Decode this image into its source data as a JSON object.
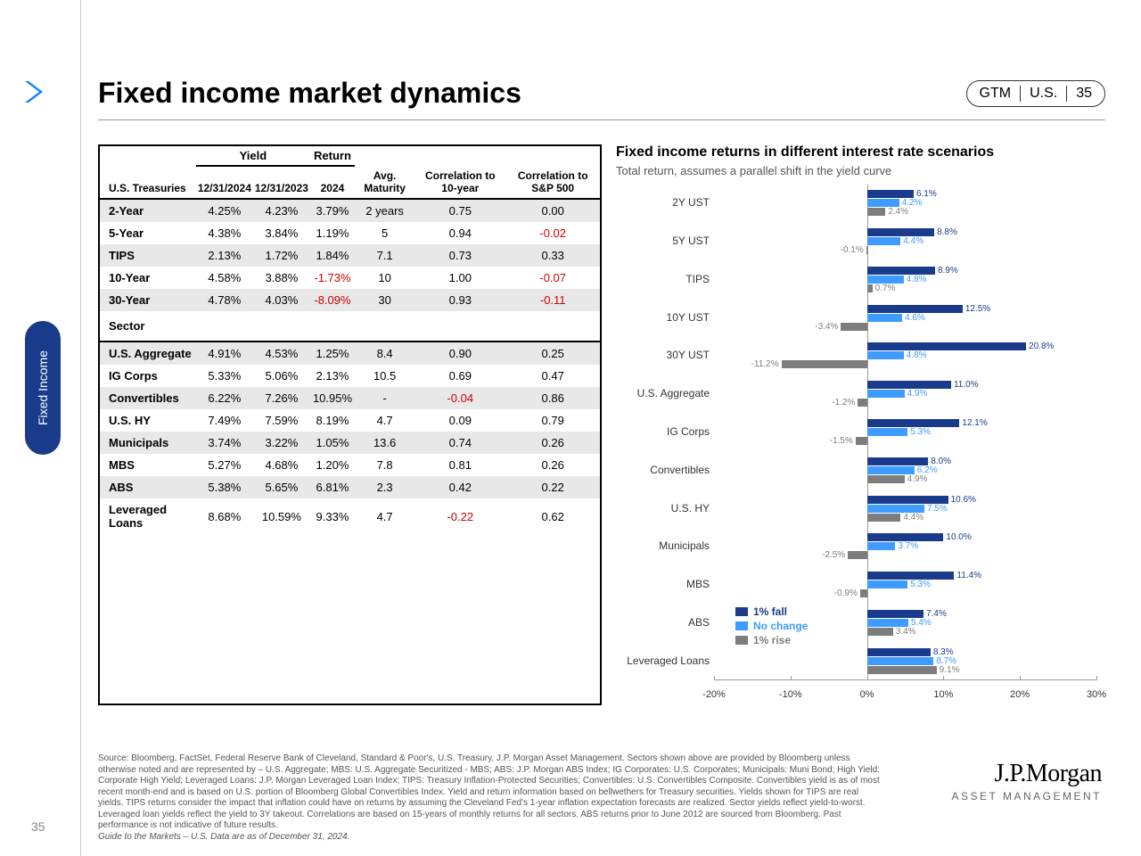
{
  "page": {
    "title": "Fixed income market dynamics",
    "side_tab": "Fixed Income",
    "page_number": "35",
    "pill": [
      "GTM",
      "U.S.",
      "35"
    ]
  },
  "table": {
    "group_headers": [
      "Yield",
      "Return"
    ],
    "col_headers": [
      "U.S. Treasuries",
      "12/31/2024",
      "12/31/2023",
      "2024",
      "Avg. Maturity",
      "Correlation to 10-year",
      "Correlation to S&P 500"
    ],
    "section1_rows": [
      {
        "label": "2-Year",
        "vals": [
          "4.25%",
          "4.23%",
          "3.79%",
          "2 years",
          "0.75",
          "0.00"
        ],
        "neg": []
      },
      {
        "label": "5-Year",
        "vals": [
          "4.38%",
          "3.84%",
          "1.19%",
          "5",
          "0.94",
          "-0.02"
        ],
        "neg": [
          5
        ]
      },
      {
        "label": "TIPS",
        "vals": [
          "2.13%",
          "1.72%",
          "1.84%",
          "7.1",
          "0.73",
          "0.33"
        ],
        "neg": []
      },
      {
        "label": "10-Year",
        "vals": [
          "4.58%",
          "3.88%",
          "-1.73%",
          "10",
          "1.00",
          "-0.07"
        ],
        "neg": [
          2,
          5
        ]
      },
      {
        "label": "30-Year",
        "vals": [
          "4.78%",
          "4.03%",
          "-8.09%",
          "30",
          "0.93",
          "-0.11"
        ],
        "neg": [
          2,
          5
        ]
      }
    ],
    "section2_header": "Sector",
    "section2_rows": [
      {
        "label": "U.S. Aggregate",
        "vals": [
          "4.91%",
          "4.53%",
          "1.25%",
          "8.4",
          "0.90",
          "0.25"
        ],
        "neg": []
      },
      {
        "label": "IG Corps",
        "vals": [
          "5.33%",
          "5.06%",
          "2.13%",
          "10.5",
          "0.69",
          "0.47"
        ],
        "neg": []
      },
      {
        "label": "Convertibles",
        "vals": [
          "6.22%",
          "7.26%",
          "10.95%",
          "-",
          "-0.04",
          "0.86"
        ],
        "neg": [
          4
        ]
      },
      {
        "label": "U.S. HY",
        "vals": [
          "7.49%",
          "7.59%",
          "8.19%",
          "4.7",
          "0.09",
          "0.79"
        ],
        "neg": []
      },
      {
        "label": "Municipals",
        "vals": [
          "3.74%",
          "3.22%",
          "1.05%",
          "13.6",
          "0.74",
          "0.26"
        ],
        "neg": []
      },
      {
        "label": "MBS",
        "vals": [
          "5.27%",
          "4.68%",
          "1.20%",
          "7.8",
          "0.81",
          "0.26"
        ],
        "neg": []
      },
      {
        "label": "ABS",
        "vals": [
          "5.38%",
          "5.65%",
          "6.81%",
          "2.3",
          "0.42",
          "0.22"
        ],
        "neg": []
      },
      {
        "label": "Leveraged Loans",
        "vals": [
          "8.68%",
          "10.59%",
          "9.33%",
          "4.7",
          "-0.22",
          "0.62"
        ],
        "neg": [
          4
        ]
      }
    ]
  },
  "chart": {
    "title": "Fixed income returns in different interest rate scenarios",
    "subtitle": "Total return, assumes a parallel shift in the yield curve",
    "categories": [
      "2Y UST",
      "5Y UST",
      "TIPS",
      "10Y UST",
      "30Y UST",
      "U.S. Aggregate",
      "IG Corps",
      "Convertibles",
      "U.S. HY",
      "Municipals",
      "MBS",
      "ABS",
      "Leveraged Loans"
    ],
    "series": [
      {
        "name": "1% fall",
        "color": "#1a3b8b",
        "data": [
          6.1,
          8.8,
          8.9,
          12.5,
          20.8,
          11.0,
          12.1,
          8.0,
          10.6,
          10.0,
          11.4,
          7.4,
          8.3
        ]
      },
      {
        "name": "No change",
        "color": "#3e9bff",
        "data": [
          4.2,
          4.4,
          4.8,
          4.6,
          4.8,
          4.9,
          5.3,
          6.2,
          7.5,
          3.7,
          5.3,
          5.4,
          8.7
        ]
      },
      {
        "name": "1% rise",
        "color": "#7d7d7d",
        "data": [
          2.4,
          -0.1,
          0.7,
          -3.4,
          -11.2,
          -1.2,
          -1.5,
          4.9,
          4.4,
          -2.5,
          -0.9,
          3.4,
          9.1
        ]
      }
    ],
    "xmin": -20,
    "xmax": 30,
    "xticks": [
      "-20%",
      "-10%",
      "0%",
      "10%",
      "20%",
      "30%"
    ],
    "legend_labels": [
      "1% fall",
      "No change",
      "1% rise"
    ]
  },
  "footer": {
    "text": "Source: Bloomberg, FactSet, Federal Reserve Bank of Cleveland, Standard & Poor's, U.S. Treasury, J.P. Morgan Asset Management. Sectors shown above are provided by Bloomberg unless otherwise noted and are represented by – U.S. Aggregate; MBS: U.S. Aggregate Securitized - MBS; ABS: J.P. Morgan ABS Index; IG Corporates: U.S. Corporates; Municipals: Muni Bond; High Yield: Corporate High Yield; Leveraged Loans: J.P. Morgan Leveraged Loan Index; TIPS: Treasury Inflation-Protected Securities; Convertibles: U.S. Convertibles Composite. Convertibles yield is as of most recent month-end and is based on U.S. portion of Bloomberg Global Convertibles Index. Yield and return information based on bellwethers for Treasury securities. Yields shown for TIPS are real yields. TIPS returns consider the impact that inflation could have on returns by assuming the Cleveland Fed's 1-year inflation expectation forecasts are realized. Sector yields reflect yield-to-worst. Leveraged loan yields reflect the yield to 3Y takeout. Correlations are based on 15-years of monthly returns for all sectors. ABS returns prior to June 2012 are sourced from Bloomberg. Past performance is not indicative of future results.",
    "guide": "Guide to the Markets – U.S. Data are as of December 31, 2024."
  },
  "logo": {
    "line1": "J.P.Morgan",
    "line2": "ASSET MANAGEMENT"
  }
}
